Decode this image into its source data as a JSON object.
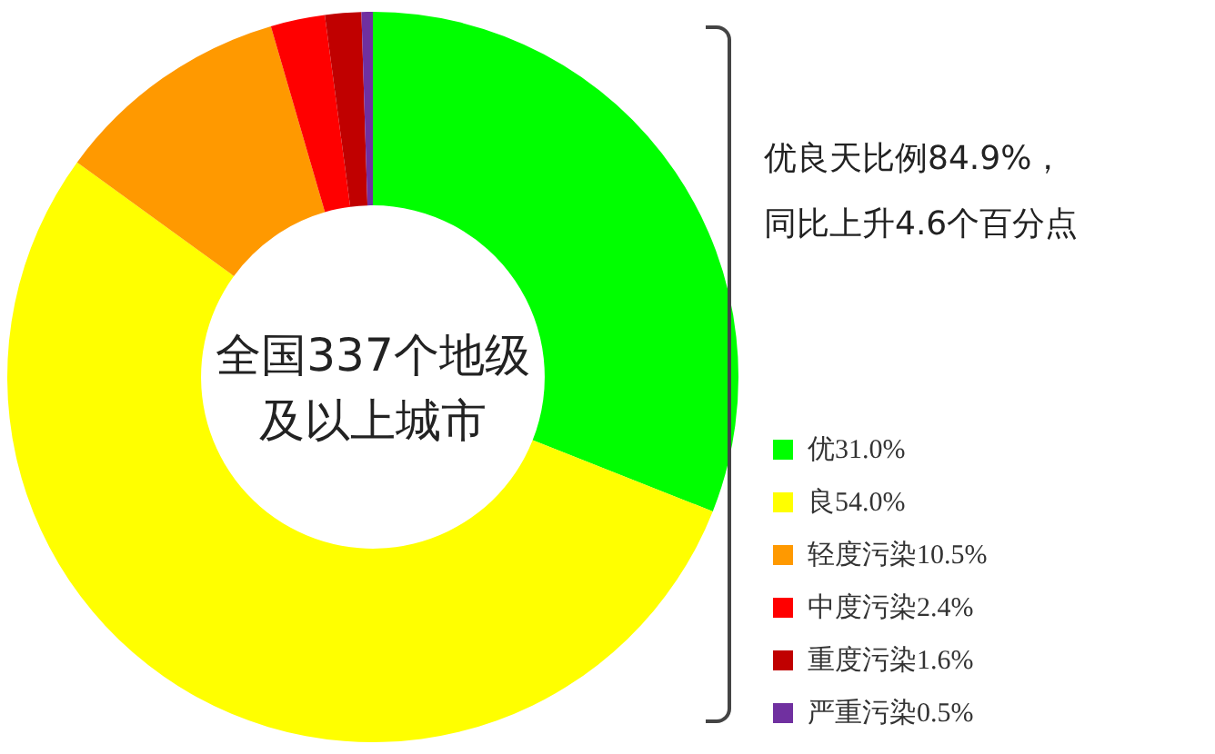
{
  "chart_data": {
    "type": "donut",
    "categories": [
      "优31.0%",
      "良54.0%",
      "轻度污染10.5%",
      "中度污染2.4%",
      "重度污染1.6%",
      "严重污染0.5%"
    ],
    "values": [
      31.0,
      54.0,
      10.5,
      2.4,
      1.6,
      0.5
    ],
    "colors": [
      "#00ff00",
      "#ffff00",
      "#ff9900",
      "#ff0000",
      "#c00000",
      "#7030a0"
    ],
    "legend": "bottom right",
    "annotations": [
      "全国337个地级及以上城市",
      "优良天比例84.9%，同比上升4.6个百分点"
    ]
  }
}
